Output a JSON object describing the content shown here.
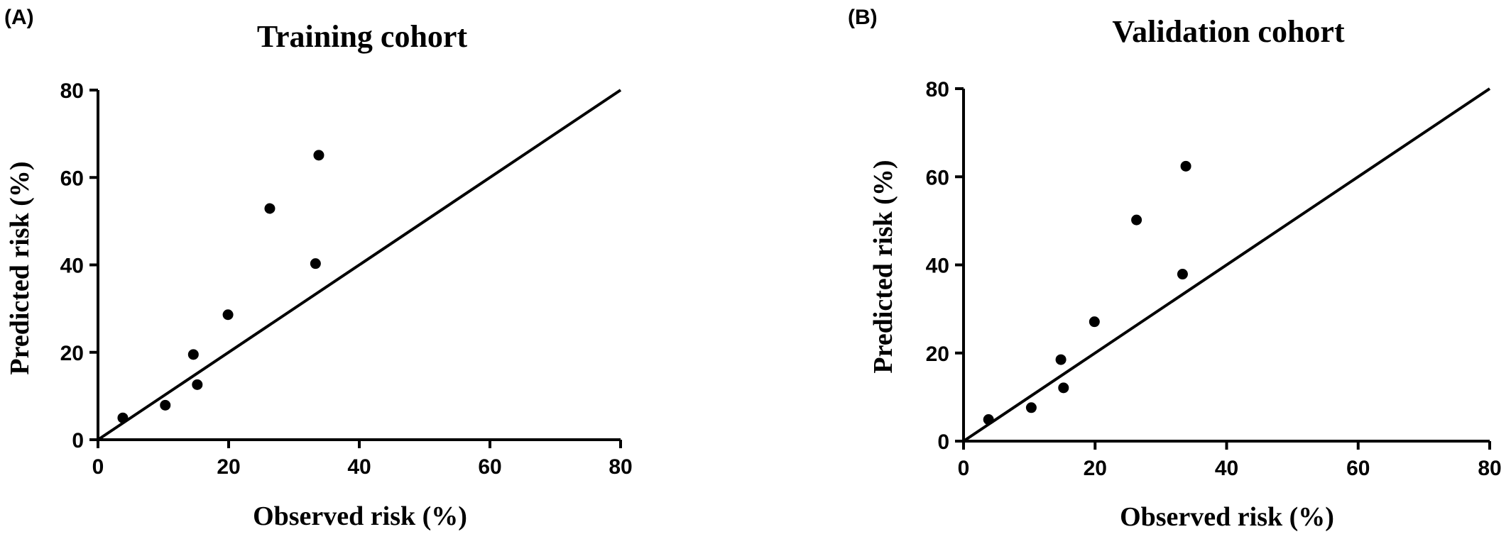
{
  "chart_data": [
    {
      "type": "scatter",
      "panel": "(A)",
      "title": "Training cohort",
      "xlabel": "Observed risk (%)",
      "ylabel": "Predicted risk (%)",
      "xlim": [
        0,
        80
      ],
      "ylim": [
        0,
        80
      ],
      "xticks": [
        "0",
        "20",
        "40",
        "60",
        "80"
      ],
      "yticks": [
        "0",
        "20",
        "40",
        "60",
        "80"
      ],
      "reference_line": {
        "from": [
          0,
          0
        ],
        "to": [
          80,
          80
        ]
      },
      "points": [
        {
          "x": 3.8,
          "y": 5.0
        },
        {
          "x": 10.3,
          "y": 7.9
        },
        {
          "x": 14.6,
          "y": 19.5
        },
        {
          "x": 15.2,
          "y": 12.6
        },
        {
          "x": 19.9,
          "y": 28.6
        },
        {
          "x": 26.3,
          "y": 52.9
        },
        {
          "x": 33.3,
          "y": 40.3
        },
        {
          "x": 33.8,
          "y": 65.1
        }
      ],
      "grid": false,
      "marker_color": "#000000"
    },
    {
      "type": "scatter",
      "panel": "(B)",
      "title": "Validation cohort",
      "xlabel": "Observed risk (%)",
      "ylabel": "Predicted risk (%)",
      "xlim": [
        0,
        80
      ],
      "ylim": [
        0,
        80
      ],
      "xticks": [
        "0",
        "20",
        "40",
        "60",
        "80"
      ],
      "yticks": [
        "0",
        "20",
        "40",
        "60",
        "80"
      ],
      "reference_line": {
        "from": [
          0,
          0
        ],
        "to": [
          80,
          80
        ]
      },
      "points": [
        {
          "x": 3.8,
          "y": 4.9
        },
        {
          "x": 10.3,
          "y": 7.6
        },
        {
          "x": 14.8,
          "y": 18.5
        },
        {
          "x": 15.2,
          "y": 12.1
        },
        {
          "x": 19.9,
          "y": 27.1
        },
        {
          "x": 26.3,
          "y": 50.2
        },
        {
          "x": 33.3,
          "y": 37.9
        },
        {
          "x": 33.8,
          "y": 62.4
        }
      ],
      "grid": false,
      "marker_color": "#000000"
    }
  ]
}
